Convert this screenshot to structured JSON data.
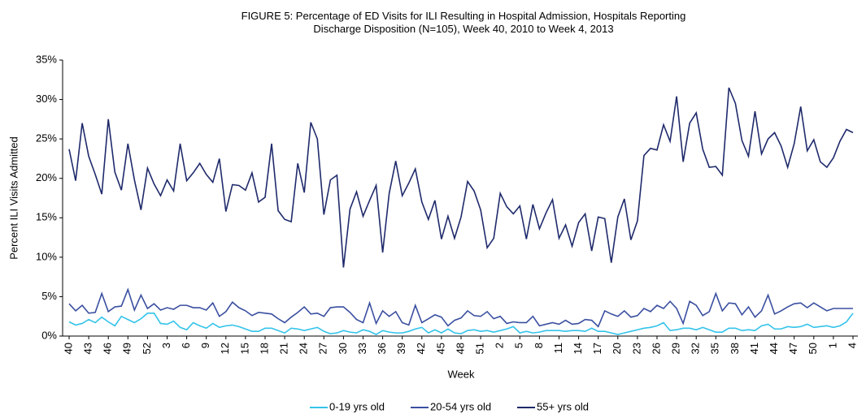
{
  "chart_data": {
    "type": "line",
    "title": "FIGURE 5: Percentage of ED Visits for ILI Resulting in Hospital Admission, Hospitals Reporting Discharge Disposition (N=105), Week 40, 2010 to Week 4, 2013",
    "x_label": "Week",
    "y_label": "Percent ILI Visits Admitted",
    "categories": [
      "40",
      null,
      null,
      "43",
      null,
      null,
      "46",
      null,
      null,
      "49",
      null,
      null,
      "52",
      null,
      null,
      "3",
      null,
      null,
      "6",
      null,
      null,
      "9",
      null,
      null,
      "12",
      null,
      null,
      "15",
      null,
      null,
      "18",
      null,
      null,
      "21",
      null,
      null,
      "24",
      null,
      null,
      "27",
      null,
      null,
      "30",
      null,
      null,
      "33",
      null,
      null,
      "36",
      null,
      null,
      "39",
      null,
      null,
      "42",
      null,
      null,
      "45",
      null,
      null,
      "48",
      null,
      null,
      "51",
      null,
      null,
      "2",
      null,
      null,
      "5",
      null,
      null,
      "8",
      null,
      null,
      "11",
      null,
      null,
      "14",
      null,
      null,
      "17",
      null,
      null,
      "20",
      null,
      null,
      "23",
      null,
      null,
      "26",
      null,
      null,
      "29",
      null,
      null,
      "32",
      null,
      null,
      "35",
      null,
      null,
      "38",
      null,
      null,
      "41",
      null,
      null,
      "44",
      null,
      null,
      "47",
      null,
      null,
      "50",
      null,
      null,
      "1",
      null,
      null,
      "4"
    ],
    "series": [
      {
        "name": "0-19 yrs old",
        "color": "#33c3ea",
        "values": [
          1.8,
          1.4,
          1.6,
          2.1,
          1.7,
          2.4,
          1.8,
          1.3,
          2.5,
          2.1,
          1.7,
          2.2,
          2.9,
          2.9,
          1.6,
          1.5,
          1.9,
          1.1,
          0.8,
          1.7,
          1.3,
          1.0,
          1.6,
          1.1,
          1.3,
          1.4,
          1.2,
          0.9,
          0.6,
          0.6,
          1.0,
          1.0,
          0.7,
          0.4,
          1.0,
          0.9,
          0.7,
          0.9,
          1.1,
          0.6,
          0.3,
          0.4,
          0.7,
          0.5,
          0.4,
          0.8,
          0.6,
          0.2,
          0.7,
          0.5,
          0.4,
          0.4,
          0.6,
          0.9,
          1.1,
          0.4,
          0.8,
          0.4,
          0.9,
          0.4,
          0.3,
          0.7,
          0.8,
          0.6,
          0.7,
          0.5,
          0.7,
          0.9,
          1.2,
          0.4,
          0.6,
          0.4,
          0.5,
          0.7,
          0.7,
          0.7,
          0.6,
          0.7,
          0.7,
          0.6,
          1.0,
          0.6,
          0.6,
          0.4,
          0.2,
          0.4,
          0.6,
          0.8,
          1.0,
          1.1,
          1.3,
          1.7,
          0.7,
          0.8,
          1.0,
          1.0,
          0.8,
          1.1,
          0.8,
          0.5,
          0.5,
          1.0,
          1.0,
          0.7,
          0.8,
          0.7,
          1.3,
          1.5,
          0.9,
          0.9,
          1.2,
          1.1,
          1.2,
          1.5,
          1.1,
          1.2,
          1.3,
          1.1,
          1.3,
          1.8,
          2.9
        ]
      },
      {
        "name": "20-54 yrs old",
        "color": "#3a4fa0",
        "values": [
          4.1,
          3.2,
          3.9,
          2.9,
          3.0,
          5.4,
          3.1,
          3.7,
          3.8,
          5.9,
          3.3,
          5.2,
          3.5,
          4.1,
          3.3,
          3.6,
          3.4,
          3.9,
          3.9,
          3.6,
          3.6,
          3.3,
          4.2,
          2.5,
          3.1,
          4.3,
          3.6,
          3.2,
          2.6,
          3.0,
          2.9,
          2.8,
          2.2,
          1.7,
          2.4,
          3.0,
          3.7,
          2.8,
          2.9,
          2.5,
          3.6,
          3.7,
          3.7,
          3.0,
          2.1,
          1.7,
          4.2,
          1.6,
          3.2,
          2.5,
          3.1,
          1.7,
          1.4,
          3.9,
          1.7,
          2.2,
          2.7,
          2.4,
          1.3,
          2.0,
          2.3,
          3.2,
          2.6,
          2.5,
          3.1,
          2.2,
          2.5,
          1.6,
          1.8,
          1.7,
          1.7,
          2.5,
          1.3,
          1.5,
          1.7,
          1.5,
          2.0,
          1.5,
          1.6,
          2.1,
          2.0,
          1.2,
          3.2,
          2.8,
          2.5,
          3.2,
          2.4,
          2.6,
          3.5,
          3.1,
          3.9,
          3.5,
          4.4,
          3.5,
          1.6,
          4.4,
          3.9,
          2.6,
          3.1,
          5.4,
          3.2,
          4.2,
          4.1,
          2.7,
          3.7,
          2.4,
          3.2,
          5.2,
          2.8,
          3.2,
          3.7,
          4.1,
          4.2,
          3.6,
          4.2,
          3.7,
          3.2,
          3.5,
          3.5,
          3.5,
          3.5
        ]
      },
      {
        "name": "55+ yrs old",
        "color": "#1f2a6b",
        "values": [
          23.7,
          19.7,
          27.0,
          22.8,
          20.5,
          18.0,
          27.5,
          20.8,
          18.5,
          24.4,
          19.8,
          16.0,
          21.3,
          19.3,
          17.8,
          19.8,
          18.4,
          24.4,
          19.7,
          20.7,
          21.9,
          20.5,
          19.5,
          22.5,
          15.8,
          19.2,
          19.1,
          18.5,
          20.7,
          17.0,
          17.6,
          24.4,
          15.9,
          14.8,
          14.5,
          21.9,
          18.2,
          27.1,
          25.0,
          15.4,
          19.8,
          20.4,
          8.7,
          16.1,
          18.3,
          15.2,
          17.2,
          19.1,
          10.6,
          18.1,
          22.2,
          17.8,
          19.4,
          21.2,
          17.0,
          14.8,
          17.2,
          12.3,
          15.2,
          12.4,
          15.1,
          19.6,
          18.4,
          16.0,
          11.2,
          12.4,
          18.1,
          16.4,
          15.5,
          16.5,
          12.3,
          16.7,
          13.6,
          15.6,
          17.3,
          12.4,
          14.1,
          11.4,
          14.4,
          15.5,
          10.8,
          15.1,
          14.9,
          9.3,
          15.1,
          17.4,
          12.2,
          14.6,
          22.9,
          23.8,
          23.6,
          26.8,
          24.7,
          30.4,
          22.1,
          27.0,
          28.3,
          23.7,
          21.4,
          21.5,
          20.4,
          31.5,
          29.5,
          24.8,
          22.8,
          28.5,
          23.1,
          25.0,
          25.8,
          24.1,
          21.4,
          24.4,
          29.1,
          23.5,
          24.9,
          22.1,
          21.4,
          22.6,
          24.7,
          26.2,
          25.8
        ]
      }
    ],
    "ylim": [
      0,
      35
    ],
    "yticks": [
      {
        "value": 0,
        "label": "0%"
      },
      {
        "value": 5,
        "label": "5%"
      },
      {
        "value": 10,
        "label": "10%"
      },
      {
        "value": 15,
        "label": "15%"
      },
      {
        "value": 20,
        "label": "20%"
      },
      {
        "value": 25,
        "label": "25%"
      },
      {
        "value": 30,
        "label": "30%"
      },
      {
        "value": 35,
        "label": "35%"
      }
    ],
    "legend": "bottom"
  }
}
